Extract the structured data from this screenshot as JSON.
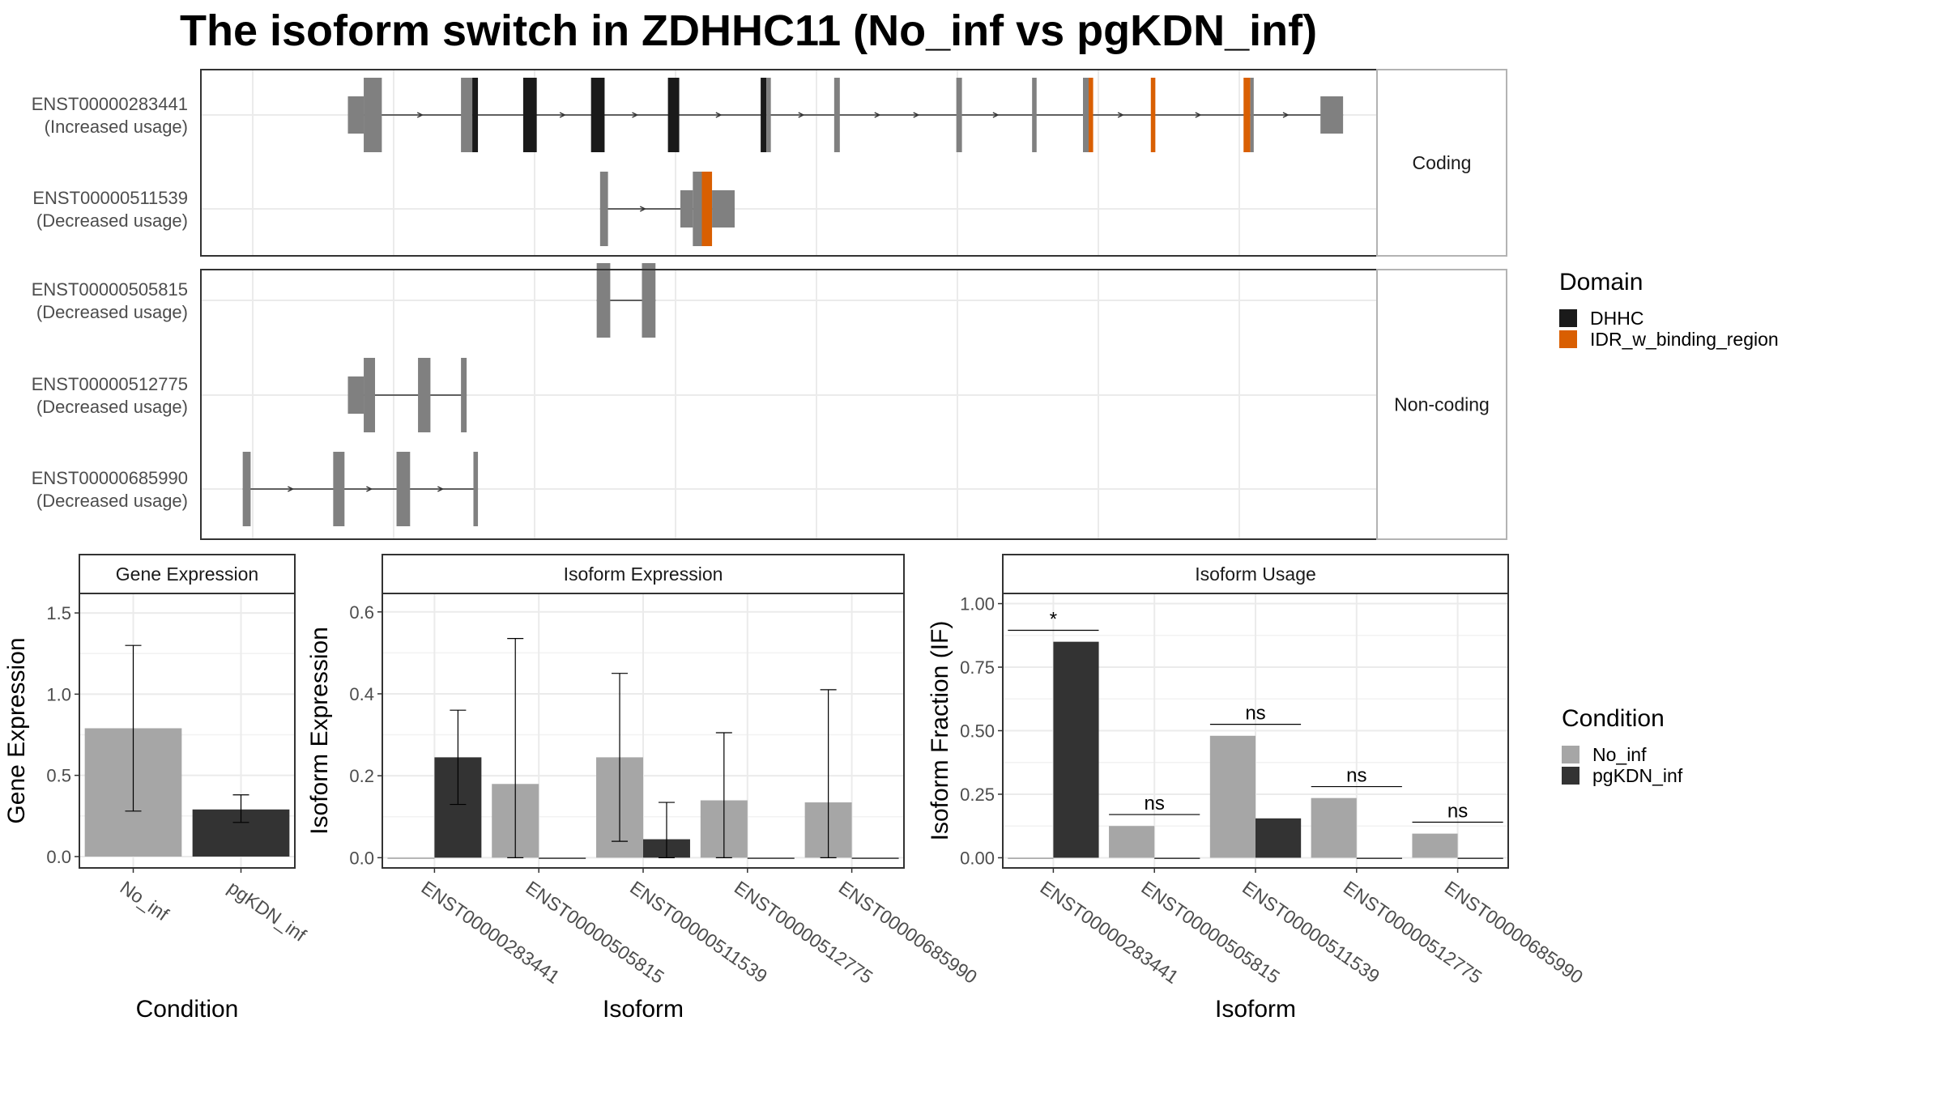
{
  "title": "The isoform switch in ZDHHC11 (No_inf vs pgKDN_inf)",
  "colors": {
    "exon": "#808080",
    "dhhc": "#1a1a1a",
    "idr": "#d95f02",
    "no_inf": "#a6a6a6",
    "pgkdn_inf": "#333333",
    "grid": "#ebebeb",
    "strip_bg": "#ffffff",
    "panel_border": "#333333"
  },
  "transcript_plot": {
    "facets": [
      {
        "label": "Coding",
        "tracks": [
          {
            "id": "ENST00000283441",
            "usage": "(Increased usage)",
            "segments": [
              {
                "s": 13.0,
                "e": 14.4,
                "t": "utr"
              },
              {
                "s": 14.4,
                "e": 16.0,
                "t": "exon"
              },
              {
                "s": 23.0,
                "e": 24.0,
                "t": "exon"
              },
              {
                "s": 24.0,
                "e": 24.5,
                "t": "dhhc"
              },
              {
                "s": 28.5,
                "e": 29.7,
                "t": "dhhc"
              },
              {
                "s": 34.5,
                "e": 35.7,
                "t": "dhhc"
              },
              {
                "s": 41.3,
                "e": 42.3,
                "t": "dhhc"
              },
              {
                "s": 49.5,
                "e": 50.0,
                "t": "dhhc"
              },
              {
                "s": 50.0,
                "e": 50.4,
                "t": "exon"
              },
              {
                "s": 56.0,
                "e": 56.5,
                "t": "exon"
              },
              {
                "s": 66.8,
                "e": 67.3,
                "t": "exon"
              },
              {
                "s": 73.5,
                "e": 73.9,
                "t": "exon"
              },
              {
                "s": 78.0,
                "e": 78.5,
                "t": "exon"
              },
              {
                "s": 78.5,
                "e": 78.9,
                "t": "idr"
              },
              {
                "s": 84.0,
                "e": 84.4,
                "t": "idr"
              },
              {
                "s": 92.2,
                "e": 92.8,
                "t": "idr"
              },
              {
                "s": 92.8,
                "e": 93.1,
                "t": "exon"
              },
              {
                "s": 99.0,
                "e": 101.0,
                "t": "utr"
              }
            ]
          },
          {
            "id": "ENST00000511539",
            "usage": "(Decreased usage)",
            "segments": [
              {
                "s": 35.3,
                "e": 36.0,
                "t": "exon"
              },
              {
                "s": 42.4,
                "e": 43.5,
                "t": "utr"
              },
              {
                "s": 43.5,
                "e": 44.3,
                "t": "exon"
              },
              {
                "s": 44.3,
                "e": 45.2,
                "t": "idr"
              },
              {
                "s": 45.2,
                "e": 47.2,
                "t": "utr"
              }
            ]
          }
        ]
      },
      {
        "label": "Non-coding",
        "tracks": [
          {
            "id": "ENST00000505815",
            "usage": "(Decreased usage)",
            "segments": [
              {
                "s": 35.0,
                "e": 36.2,
                "t": "exon"
              },
              {
                "s": 39.0,
                "e": 40.2,
                "t": "exon"
              }
            ]
          },
          {
            "id": "ENST00000512775",
            "usage": "(Decreased usage)",
            "segments": [
              {
                "s": 13.0,
                "e": 14.4,
                "t": "utr"
              },
              {
                "s": 14.4,
                "e": 15.4,
                "t": "exon"
              },
              {
                "s": 19.2,
                "e": 20.3,
                "t": "exon"
              },
              {
                "s": 23.0,
                "e": 23.5,
                "t": "exon"
              }
            ]
          },
          {
            "id": "ENST00000685990",
            "usage": "(Decreased usage)",
            "segments": [
              {
                "s": 3.7,
                "e": 4.4,
                "t": "exon"
              },
              {
                "s": 11.7,
                "e": 12.7,
                "t": "exon"
              },
              {
                "s": 17.3,
                "e": 18.5,
                "t": "exon"
              },
              {
                "s": 24.1,
                "e": 24.5,
                "t": "exon"
              }
            ]
          }
        ]
      }
    ]
  },
  "legends": {
    "domain": {
      "title": "Domain",
      "items": [
        {
          "label": "DHHC",
          "color": "#1a1a1a"
        },
        {
          "label": "IDR_w_binding_region",
          "color": "#d95f02"
        }
      ]
    },
    "condition": {
      "title": "Condition",
      "items": [
        {
          "label": "No_inf",
          "color": "#a6a6a6"
        },
        {
          "label": "pgKDN_inf",
          "color": "#333333"
        }
      ]
    }
  },
  "chart_data": [
    {
      "type": "bar",
      "title": "Gene Expression",
      "xlabel": "Condition",
      "ylabel": "Gene Expression",
      "categories": [
        "No_inf",
        "pgKDN_inf"
      ],
      "values": [
        0.79,
        0.29
      ],
      "error_low": [
        0.28,
        0.21
      ],
      "error_high": [
        1.3,
        0.38
      ],
      "ylim": [
        -0.07,
        1.62
      ],
      "yticks": [
        0.0,
        0.5,
        1.0,
        1.5
      ],
      "ytick_labels": [
        "0.0",
        "0.5",
        "1.0",
        "1.5"
      ]
    },
    {
      "type": "bar",
      "title": "Isoform Expression",
      "xlabel": "Isoform",
      "ylabel": "Isoform Expression",
      "categories": [
        "ENST00000283441",
        "ENST00000505815",
        "ENST00000511539",
        "ENST00000512775",
        "ENST00000685990"
      ],
      "series": [
        {
          "name": "No_inf",
          "values": [
            0.0,
            0.18,
            0.245,
            0.14,
            0.135
          ],
          "error_low": [
            null,
            0.0,
            0.04,
            0.0,
            0.0
          ],
          "error_high": [
            null,
            0.535,
            0.45,
            0.305,
            0.41
          ]
        },
        {
          "name": "pgKDN_inf",
          "values": [
            0.245,
            0.0,
            0.045,
            0.0,
            0.0
          ],
          "error_low": [
            0.13,
            null,
            0.0,
            null,
            null
          ],
          "error_high": [
            0.36,
            null,
            0.135,
            null,
            null
          ]
        }
      ],
      "ylim": [
        -0.025,
        0.645
      ],
      "yticks": [
        0.0,
        0.2,
        0.4,
        0.6
      ],
      "ytick_labels": [
        "0.0",
        "0.2",
        "0.4",
        "0.6"
      ]
    },
    {
      "type": "bar",
      "title": "Isoform Usage",
      "xlabel": "Isoform",
      "ylabel": "Isoform Fraction (IF)",
      "categories": [
        "ENST00000283441",
        "ENST00000505815",
        "ENST00000511539",
        "ENST00000512775",
        "ENST00000685990"
      ],
      "series": [
        {
          "name": "No_inf",
          "values": [
            0.0,
            0.125,
            0.48,
            0.235,
            0.095
          ]
        },
        {
          "name": "pgKDN_inf",
          "values": [
            0.85,
            0.0,
            0.155,
            0.0,
            0.0
          ]
        }
      ],
      "significance": [
        "*",
        "ns",
        "ns",
        "ns",
        "ns"
      ],
      "ylim": [
        -0.04,
        1.04
      ],
      "yticks": [
        0.0,
        0.25,
        0.5,
        0.75,
        1.0
      ],
      "ytick_labels": [
        "0.00",
        "0.25",
        "0.50",
        "0.75",
        "1.00"
      ]
    }
  ]
}
